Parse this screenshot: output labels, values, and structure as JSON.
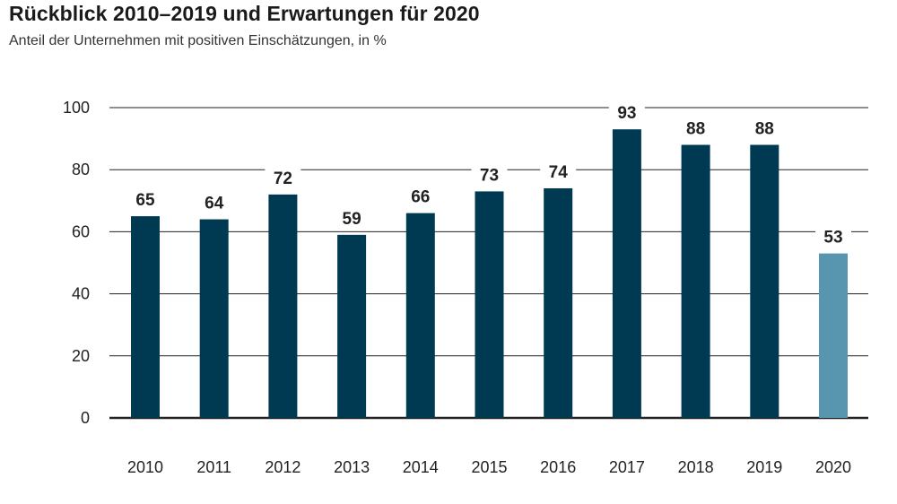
{
  "title": "Rückblick 2010–2019 und Erwartungen für 2020",
  "subtitle": "Anteil der Unternehmen mit positiven Einschätzungen, in %",
  "colors": {
    "bar": "#003a52",
    "bar_highlight": "#5895af",
    "grid": "#222222"
  },
  "chart_data": {
    "type": "bar",
    "title": "Rückblick 2010–2019 und Erwartungen für 2020",
    "subtitle": "Anteil der Unternehmen mit positiven Einschätzungen, in %",
    "xlabel": "",
    "ylabel": "",
    "ylim": [
      0,
      100
    ],
    "yticks": [
      0,
      20,
      40,
      60,
      80,
      100
    ],
    "grid": true,
    "categories": [
      "2010",
      "2011",
      "2012",
      "2013",
      "2014",
      "2015",
      "2016",
      "2017",
      "2018",
      "2019",
      "2020"
    ],
    "values": [
      65,
      64,
      72,
      59,
      66,
      73,
      74,
      93,
      88,
      88,
      53
    ],
    "highlighted_category": "2020"
  }
}
